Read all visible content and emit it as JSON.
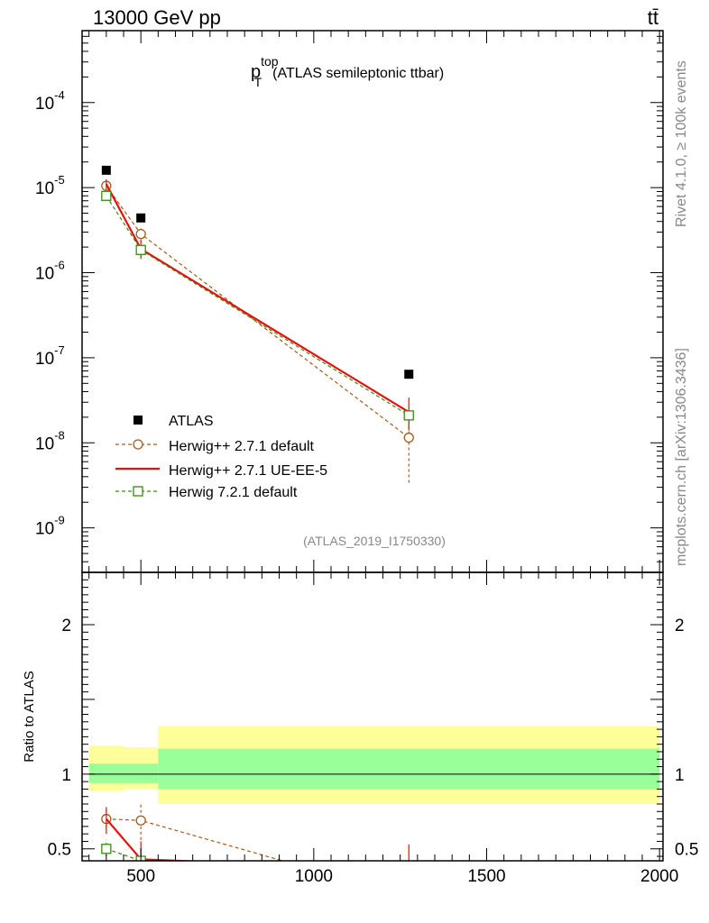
{
  "header": {
    "energy_label": "13000 GeV pp",
    "process_label": "tt̄"
  },
  "side_labels": {
    "rivet": "Rivet 4.1.0, ≥ 100k events",
    "mcplots": "mcplots.cern.ch [arXiv:1306.3436]"
  },
  "chart_data": [
    {
      "type": "line",
      "panel": "main",
      "title_main": "p",
      "title_sub": "T",
      "title_sup": "top",
      "title_rest": "(ATLAS semileptonic ttbar)",
      "analysis_id": "(ATLAS_2019_I1750330)",
      "yscale": "log",
      "xlim": [
        330,
        2010
      ],
      "ylim": [
        3e-10,
        0.0007
      ],
      "ytick_labels": [
        {
          "base": "10",
          "exp": "-9",
          "value": 1e-09
        },
        {
          "base": "10",
          "exp": "-8",
          "value": 1e-08
        },
        {
          "base": "10",
          "exp": "-7",
          "value": 1e-07
        },
        {
          "base": "10",
          "exp": "-6",
          "value": 1e-06
        },
        {
          "base": "10",
          "exp": "-5",
          "value": 1e-05
        },
        {
          "base": "10",
          "exp": "-4",
          "value": 0.0001
        }
      ],
      "legend_position": "bottom-left",
      "series": [
        {
          "name": "ATLAS",
          "style": "data",
          "color": "#000000",
          "x": [
            400,
            500,
            1275
          ],
          "y": [
            1.6e-05,
            4.4e-06,
            6.4e-08
          ]
        },
        {
          "name": "Herwig++ 2.7.1 default",
          "style": "circle-dashed",
          "color": "#a65a1a",
          "x": [
            400,
            500,
            1275
          ],
          "y": [
            1.05e-05,
            2.85e-06,
            1.15e-08
          ],
          "err_low": [
            9e-06,
            2.3e-06,
            3.4e-09
          ],
          "err_high": [
            1.22e-05,
            3.5e-06,
            1.75e-08
          ]
        },
        {
          "name": "Herwig++ 2.7.1 UE-EE-5",
          "style": "solid",
          "color": "#e8100a",
          "x": [
            400,
            500,
            1275
          ],
          "y": [
            1.1e-05,
            1.9e-06,
            2.3e-08
          ],
          "err_low": [
            9.5e-06,
            1.45e-06,
            1.4e-08
          ],
          "err_high": [
            1.25e-05,
            2.4e-06,
            3.4e-08
          ]
        },
        {
          "name": "Herwig 7.2.1 default",
          "style": "square-dashed",
          "color": "#3a8a14",
          "x": [
            400,
            500,
            1275
          ],
          "y": [
            8e-06,
            1.85e-06,
            2.1e-08
          ],
          "err_low": [
            7.2e-06,
            1.5e-06,
            1.6e-08
          ],
          "err_high": [
            9e-06,
            2.2e-06,
            2.7e-08
          ]
        }
      ]
    },
    {
      "type": "line",
      "panel": "ratio",
      "ylabel": "Ratio to ATLAS",
      "xlim": [
        330,
        2010
      ],
      "ylim": [
        0.42,
        2.35
      ],
      "x_ticks": [
        500,
        1000,
        1500,
        2000
      ],
      "x_tick_labels": [
        "500",
        "1000",
        "1500",
        "2000"
      ],
      "y_ticks": [
        0.5,
        1,
        2
      ],
      "y_tick_labels": [
        "0.5",
        "1",
        "2"
      ],
      "bands": [
        {
          "x0": 350,
          "x1": 450,
          "inner": [
            0.94,
            1.07
          ],
          "outer": [
            0.89,
            1.19
          ]
        },
        {
          "x0": 450,
          "x1": 550,
          "inner": [
            0.94,
            1.07
          ],
          "outer": [
            0.9,
            1.18
          ]
        },
        {
          "x0": 550,
          "x1": 2000,
          "inner": [
            0.9,
            1.17
          ],
          "outer": [
            0.8,
            1.32
          ]
        }
      ],
      "band_colors": {
        "inner": "#99ff99",
        "outer": "#ffff99"
      },
      "series": [
        {
          "name": "Herwig++ 2.7.1 default",
          "style": "circle-dashed",
          "color": "#a65a1a",
          "x": [
            400,
            500,
            1275
          ],
          "y": [
            0.7,
            0.69,
            0.18
          ],
          "err_low": [
            0.64,
            0.56,
            0.05
          ],
          "err_high": [
            0.76,
            0.81,
            0.27
          ]
        },
        {
          "name": "Herwig++ 2.7.1 UE-EE-5",
          "style": "solid",
          "color": "#e8100a",
          "x": [
            400,
            500,
            1275
          ],
          "y": [
            0.7,
            0.43,
            0.36
          ],
          "err_low": [
            0.6,
            0.33,
            0.22
          ],
          "err_high": [
            0.78,
            0.55,
            0.53
          ]
        },
        {
          "name": "Herwig 7.2.1 default",
          "style": "square-dashed",
          "color": "#3a8a14",
          "x": [
            400,
            500,
            1275
          ],
          "y": [
            0.5,
            0.42,
            0.33
          ],
          "err_low": [
            0.45,
            0.34,
            0.25
          ],
          "err_high": [
            0.56,
            0.5,
            0.42
          ]
        }
      ]
    }
  ]
}
